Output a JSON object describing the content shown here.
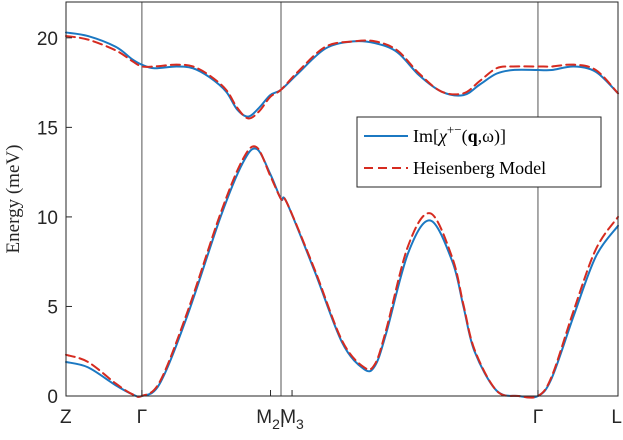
{
  "chart_data": {
    "type": "line",
    "ylabel": "Energy (meV)",
    "ylim": [
      0,
      22
    ],
    "yticks": [
      0,
      5,
      10,
      15,
      20
    ],
    "xlim": [
      0,
      1
    ],
    "xticks": [
      {
        "x": 0.0,
        "label": "Z"
      },
      {
        "x": 0.1375,
        "label": "Γ"
      },
      {
        "x": 0.3705,
        "label": "M",
        "sub": "2",
        "suffix": "|"
      },
      {
        "x": 0.4095,
        "label": "M",
        "sub": "3"
      },
      {
        "x": 0.855,
        "label": "Γ"
      },
      {
        "x": 1.0,
        "label": "L"
      }
    ],
    "vlines": [
      0.1375,
      0.3895,
      0.855
    ],
    "grid": false,
    "legend_position": "top-right",
    "series": [
      {
        "name": "Im[χ+−(q,ω)]",
        "color": "#1b78c2",
        "dash": "solid",
        "branches": [
          {
            "x": [
              0,
              0.04,
              0.09,
              0.12,
              0.1375,
              0.17,
              0.22,
              0.28,
              0.32,
              0.345,
              0.37,
              0.3895,
              0.4,
              0.45,
              0.5,
              0.54,
              0.56,
              0.58,
              0.62,
              0.66,
              0.7,
              0.72,
              0.74,
              0.78,
              0.82,
              0.855,
              0.88,
              0.92,
              0.96,
              1.0
            ],
            "y": [
              1.9,
              1.6,
              0.6,
              0.1,
              0.0,
              0.7,
              4.5,
              10.0,
              13.0,
              13.8,
              12.4,
              11.0,
              10.8,
              7.0,
              3.0,
              1.5,
              1.7,
              3.5,
              8.0,
              9.8,
              7.5,
              5.0,
              2.5,
              0.3,
              0.0,
              0.0,
              1.0,
              4.5,
              7.8,
              9.5
            ]
          },
          {
            "x": [
              0,
              0.04,
              0.09,
              0.12,
              0.1375,
              0.16,
              0.2,
              0.23,
              0.26,
              0.29,
              0.31,
              0.33,
              0.35,
              0.37,
              0.3895,
              0.42,
              0.47,
              0.52,
              0.56,
              0.6,
              0.64,
              0.68,
              0.72,
              0.75,
              0.78,
              0.81,
              0.855,
              0.88,
              0.92,
              0.96,
              1.0
            ],
            "y": [
              20.3,
              20.1,
              19.5,
              18.8,
              18.5,
              18.3,
              18.4,
              18.3,
              17.8,
              17.0,
              16.0,
              15.6,
              16.1,
              16.8,
              17.1,
              18.0,
              19.4,
              19.8,
              19.7,
              19.2,
              17.9,
              17.0,
              16.8,
              17.4,
              18.0,
              18.2,
              18.2,
              18.2,
              18.4,
              18.1,
              16.9
            ]
          }
        ]
      },
      {
        "name": "Heisenberg Model",
        "color": "#d62b20",
        "dash": "dashed",
        "branches": [
          {
            "x": [
              0,
              0.04,
              0.09,
              0.12,
              0.1375,
              0.17,
              0.22,
              0.28,
              0.32,
              0.345,
              0.37,
              0.3895,
              0.4,
              0.45,
              0.5,
              0.54,
              0.56,
              0.58,
              0.62,
              0.66,
              0.7,
              0.72,
              0.74,
              0.78,
              0.82,
              0.855,
              0.88,
              0.92,
              0.96,
              1.0
            ],
            "y": [
              2.3,
              1.9,
              0.7,
              0.1,
              0.0,
              0.8,
              4.7,
              10.2,
              13.2,
              13.9,
              12.3,
              11.0,
              10.8,
              7.1,
              3.1,
              1.6,
              1.8,
              3.7,
              8.4,
              10.2,
              7.7,
              5.1,
              2.6,
              0.3,
              0.0,
              0.0,
              1.1,
              4.8,
              8.2,
              10.0
            ]
          },
          {
            "x": [
              0,
              0.04,
              0.09,
              0.12,
              0.1375,
              0.16,
              0.2,
              0.23,
              0.26,
              0.29,
              0.31,
              0.33,
              0.35,
              0.37,
              0.3895,
              0.42,
              0.47,
              0.52,
              0.56,
              0.6,
              0.64,
              0.68,
              0.72,
              0.75,
              0.78,
              0.81,
              0.855,
              0.88,
              0.92,
              0.96,
              1.0
            ],
            "y": [
              20.1,
              19.9,
              19.3,
              18.7,
              18.4,
              18.4,
              18.5,
              18.4,
              17.9,
              17.1,
              16.1,
              15.5,
              15.9,
              16.7,
              17.1,
              18.1,
              19.5,
              19.8,
              19.8,
              19.3,
              18.0,
              17.0,
              16.9,
              17.6,
              18.3,
              18.4,
              18.4,
              18.4,
              18.5,
              18.2,
              16.9
            ]
          }
        ]
      }
    ],
    "legend": [
      {
        "text": "Im[χ+−(q,ω)]",
        "color": "#1b78c2",
        "dash": "solid"
      },
      {
        "text": "Heisenberg Model",
        "color": "#d62b20",
        "dash": "dashed"
      }
    ]
  }
}
